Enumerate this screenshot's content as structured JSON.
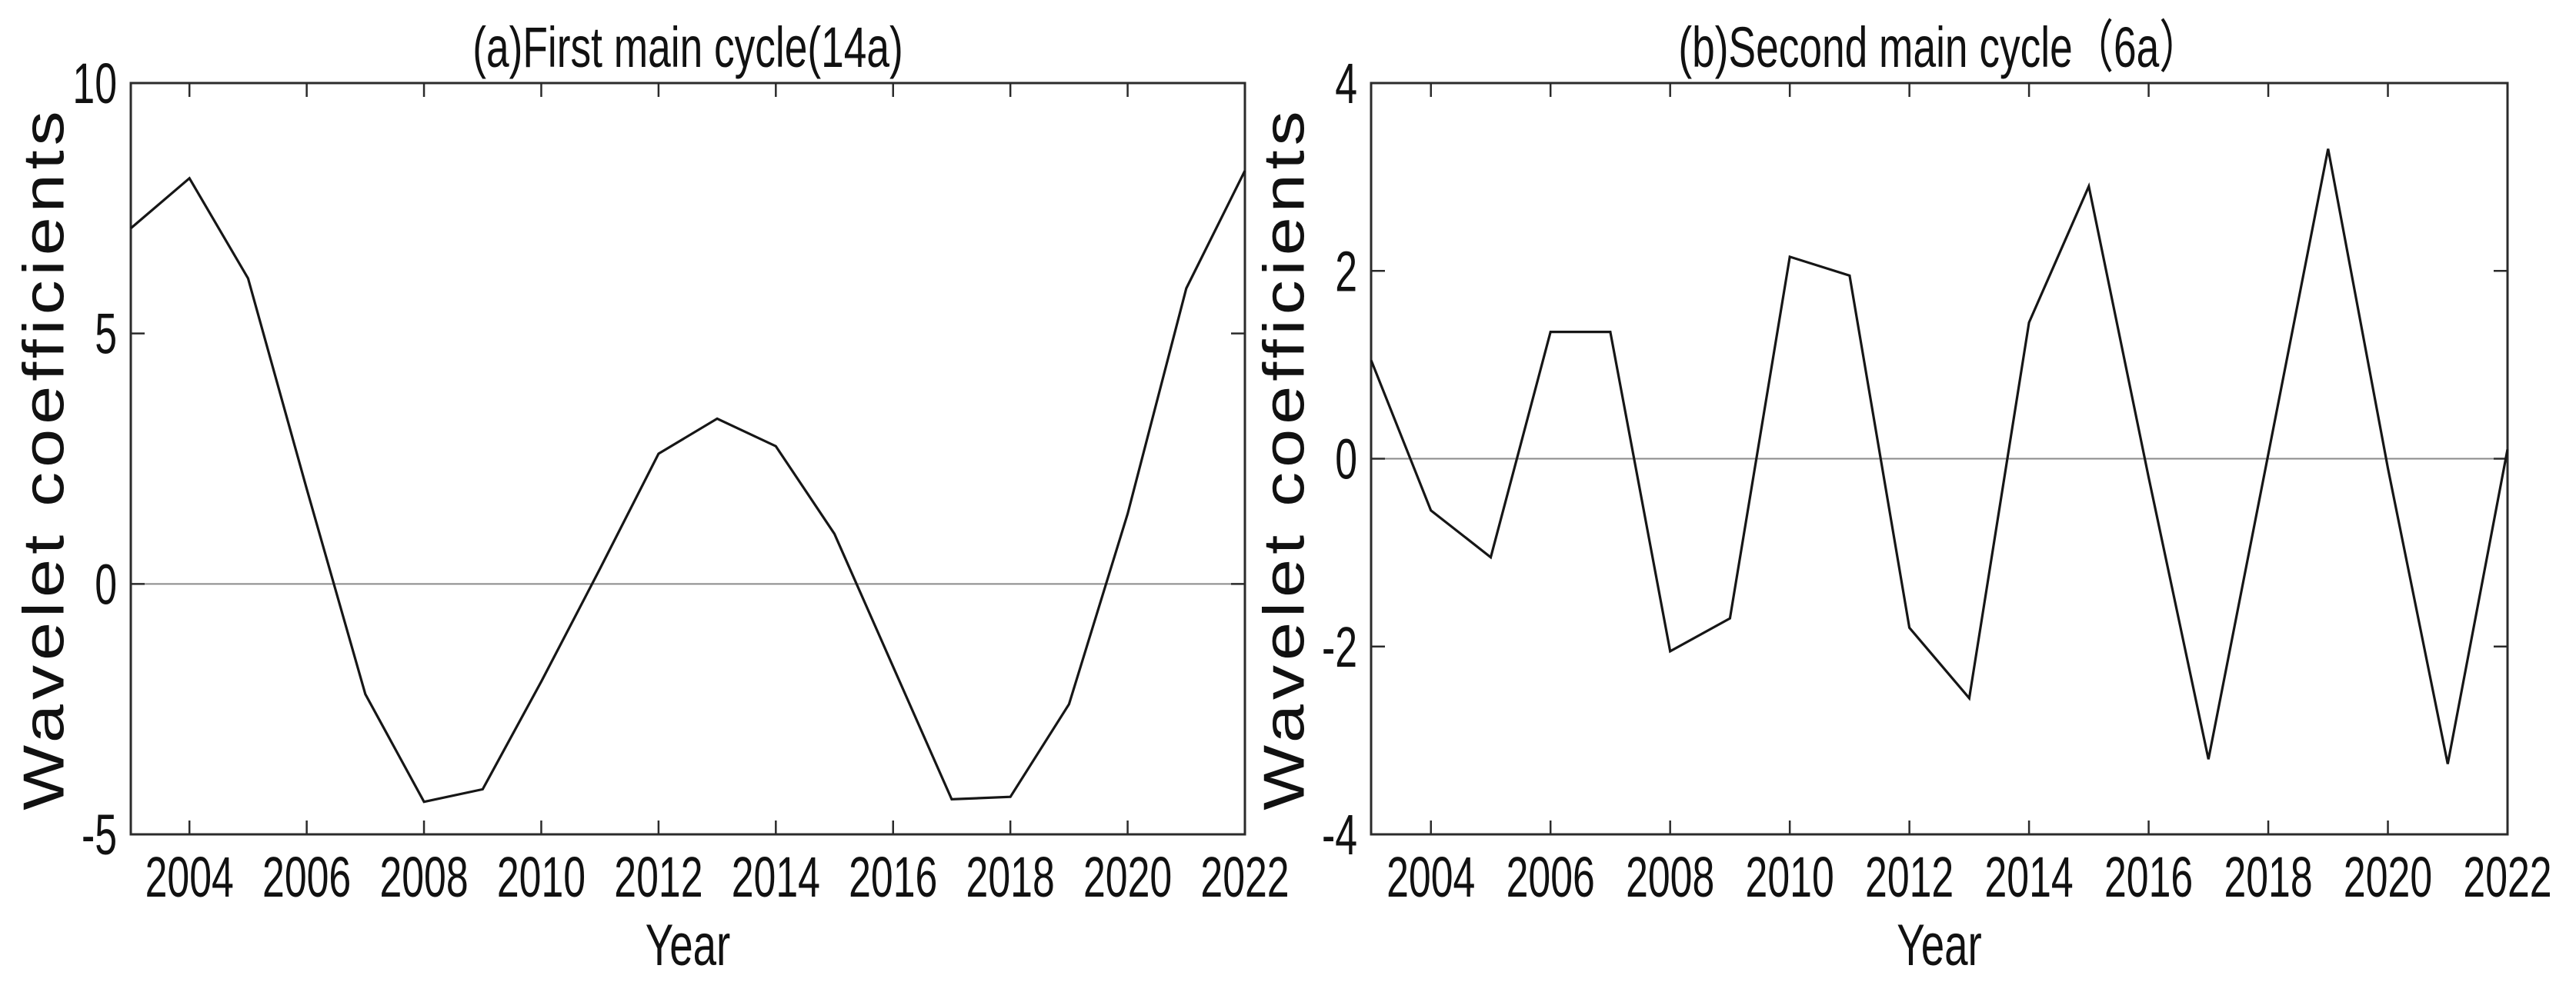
{
  "figure": {
    "background": "#ffffff",
    "axis_color": "#2b2b2b",
    "zero_line_color": "#8a8a8a",
    "text_color": "#111111"
  },
  "chart_data": [
    {
      "type": "line",
      "panel": "a",
      "title": "(a)First main cycle(14a)",
      "xlabel": "Year",
      "ylabel": "Wavelet coefficients",
      "x": [
        2003,
        2004,
        2005,
        2006,
        2007,
        2008,
        2009,
        2010,
        2011,
        2012,
        2013,
        2014,
        2015,
        2016,
        2017,
        2018,
        2019,
        2020,
        2021,
        2022
      ],
      "values": [
        7.1,
        8.1,
        6.1,
        1.9,
        -2.2,
        -4.35,
        -4.1,
        -1.95,
        0.3,
        2.6,
        3.3,
        2.75,
        1.0,
        -1.65,
        -4.3,
        -4.25,
        -2.4,
        1.4,
        5.9,
        8.25
      ],
      "xlim": [
        2003,
        2022
      ],
      "ylim": [
        -5,
        10
      ],
      "xticks": [
        2004,
        2006,
        2008,
        2010,
        2012,
        2014,
        2016,
        2018,
        2020,
        2022
      ],
      "yticks": [
        -5,
        0,
        5,
        10
      ],
      "zero_line": true,
      "grid": false,
      "legend": "none",
      "line_color": "#161616"
    },
    {
      "type": "line",
      "panel": "b",
      "title": "(b)Second main cycle（6a）",
      "xlabel": "Year",
      "ylabel": "Wavelet coefficients",
      "x": [
        2003,
        2004,
        2005,
        2006,
        2007,
        2008,
        2009,
        2010,
        2011,
        2012,
        2013,
        2014,
        2015,
        2016,
        2017,
        2018,
        2019,
        2020,
        2021,
        2022
      ],
      "values": [
        1.05,
        -0.55,
        -1.05,
        1.35,
        1.35,
        -2.05,
        -1.7,
        2.15,
        1.95,
        -1.8,
        -2.55,
        1.45,
        2.9,
        -0.2,
        -3.2,
        0.05,
        3.3,
        -0.1,
        -3.25,
        0.1
      ],
      "xlim": [
        2003,
        2022
      ],
      "ylim": [
        -4,
        4
      ],
      "xticks": [
        2004,
        2006,
        2008,
        2010,
        2012,
        2014,
        2016,
        2018,
        2020,
        2022
      ],
      "yticks": [
        -4,
        -2,
        0,
        2,
        4
      ],
      "zero_line": true,
      "grid": false,
      "legend": "none",
      "line_color": "#161616"
    }
  ]
}
